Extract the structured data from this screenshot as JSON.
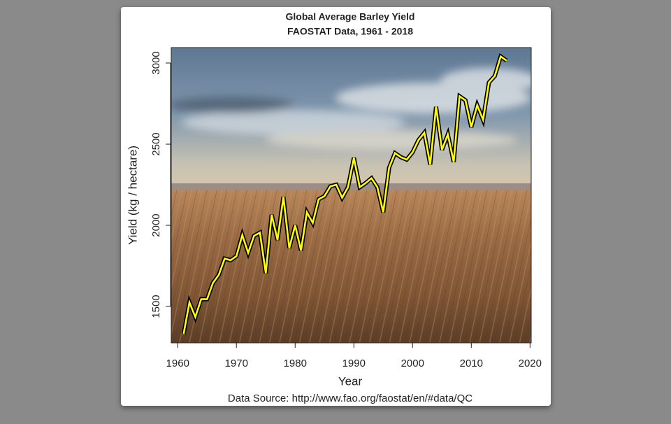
{
  "chart_data": {
    "type": "line",
    "title": "Global Average Barley Yield",
    "subtitle": "FAOSTAT Data, 1961 - 2018",
    "x_label": "Year",
    "y_label": "Yield (kg / hectare)",
    "source": "Data Source: http://www.fao.org/faostat/en/#data/QC",
    "x": [
      1961,
      1962,
      1963,
      1964,
      1965,
      1966,
      1967,
      1968,
      1969,
      1970,
      1971,
      1972,
      1973,
      1974,
      1975,
      1976,
      1977,
      1978,
      1979,
      1980,
      1981,
      1982,
      1983,
      1984,
      1985,
      1986,
      1987,
      1988,
      1989,
      1990,
      1991,
      1992,
      1993,
      1994,
      1995,
      1996,
      1997,
      1998,
      1999,
      2000,
      2001,
      2002,
      2003,
      2004,
      2005,
      2006,
      2007,
      2008,
      2009,
      2010,
      2011,
      2012,
      2013,
      2014,
      2015,
      2016
    ],
    "series": [
      {
        "name": "Barley yield",
        "color": "#ffff00",
        "values": [
          1330,
          1525,
          1435,
          1545,
          1545,
          1645,
          1695,
          1795,
          1785,
          1810,
          1940,
          1830,
          1935,
          1955,
          1705,
          2065,
          1910,
          2175,
          1860,
          2000,
          1845,
          2080,
          2015,
          2160,
          2180,
          2240,
          2250,
          2170,
          2235,
          2415,
          2235,
          2260,
          2290,
          2235,
          2080,
          2355,
          2445,
          2420,
          2405,
          2450,
          2525,
          2570,
          2375,
          2730,
          2465,
          2560,
          2390,
          2795,
          2770,
          2605,
          2740,
          2650,
          2880,
          2920,
          3040,
          3015
        ]
      }
    ],
    "xlim": [
      1958.9,
      2020.2
    ],
    "ylim": [
      1276,
      3095
    ],
    "xticks": [
      1960,
      1970,
      1980,
      1990,
      2000,
      2010,
      2020
    ],
    "yticks": [
      1500,
      2000,
      2500,
      3000
    ]
  }
}
